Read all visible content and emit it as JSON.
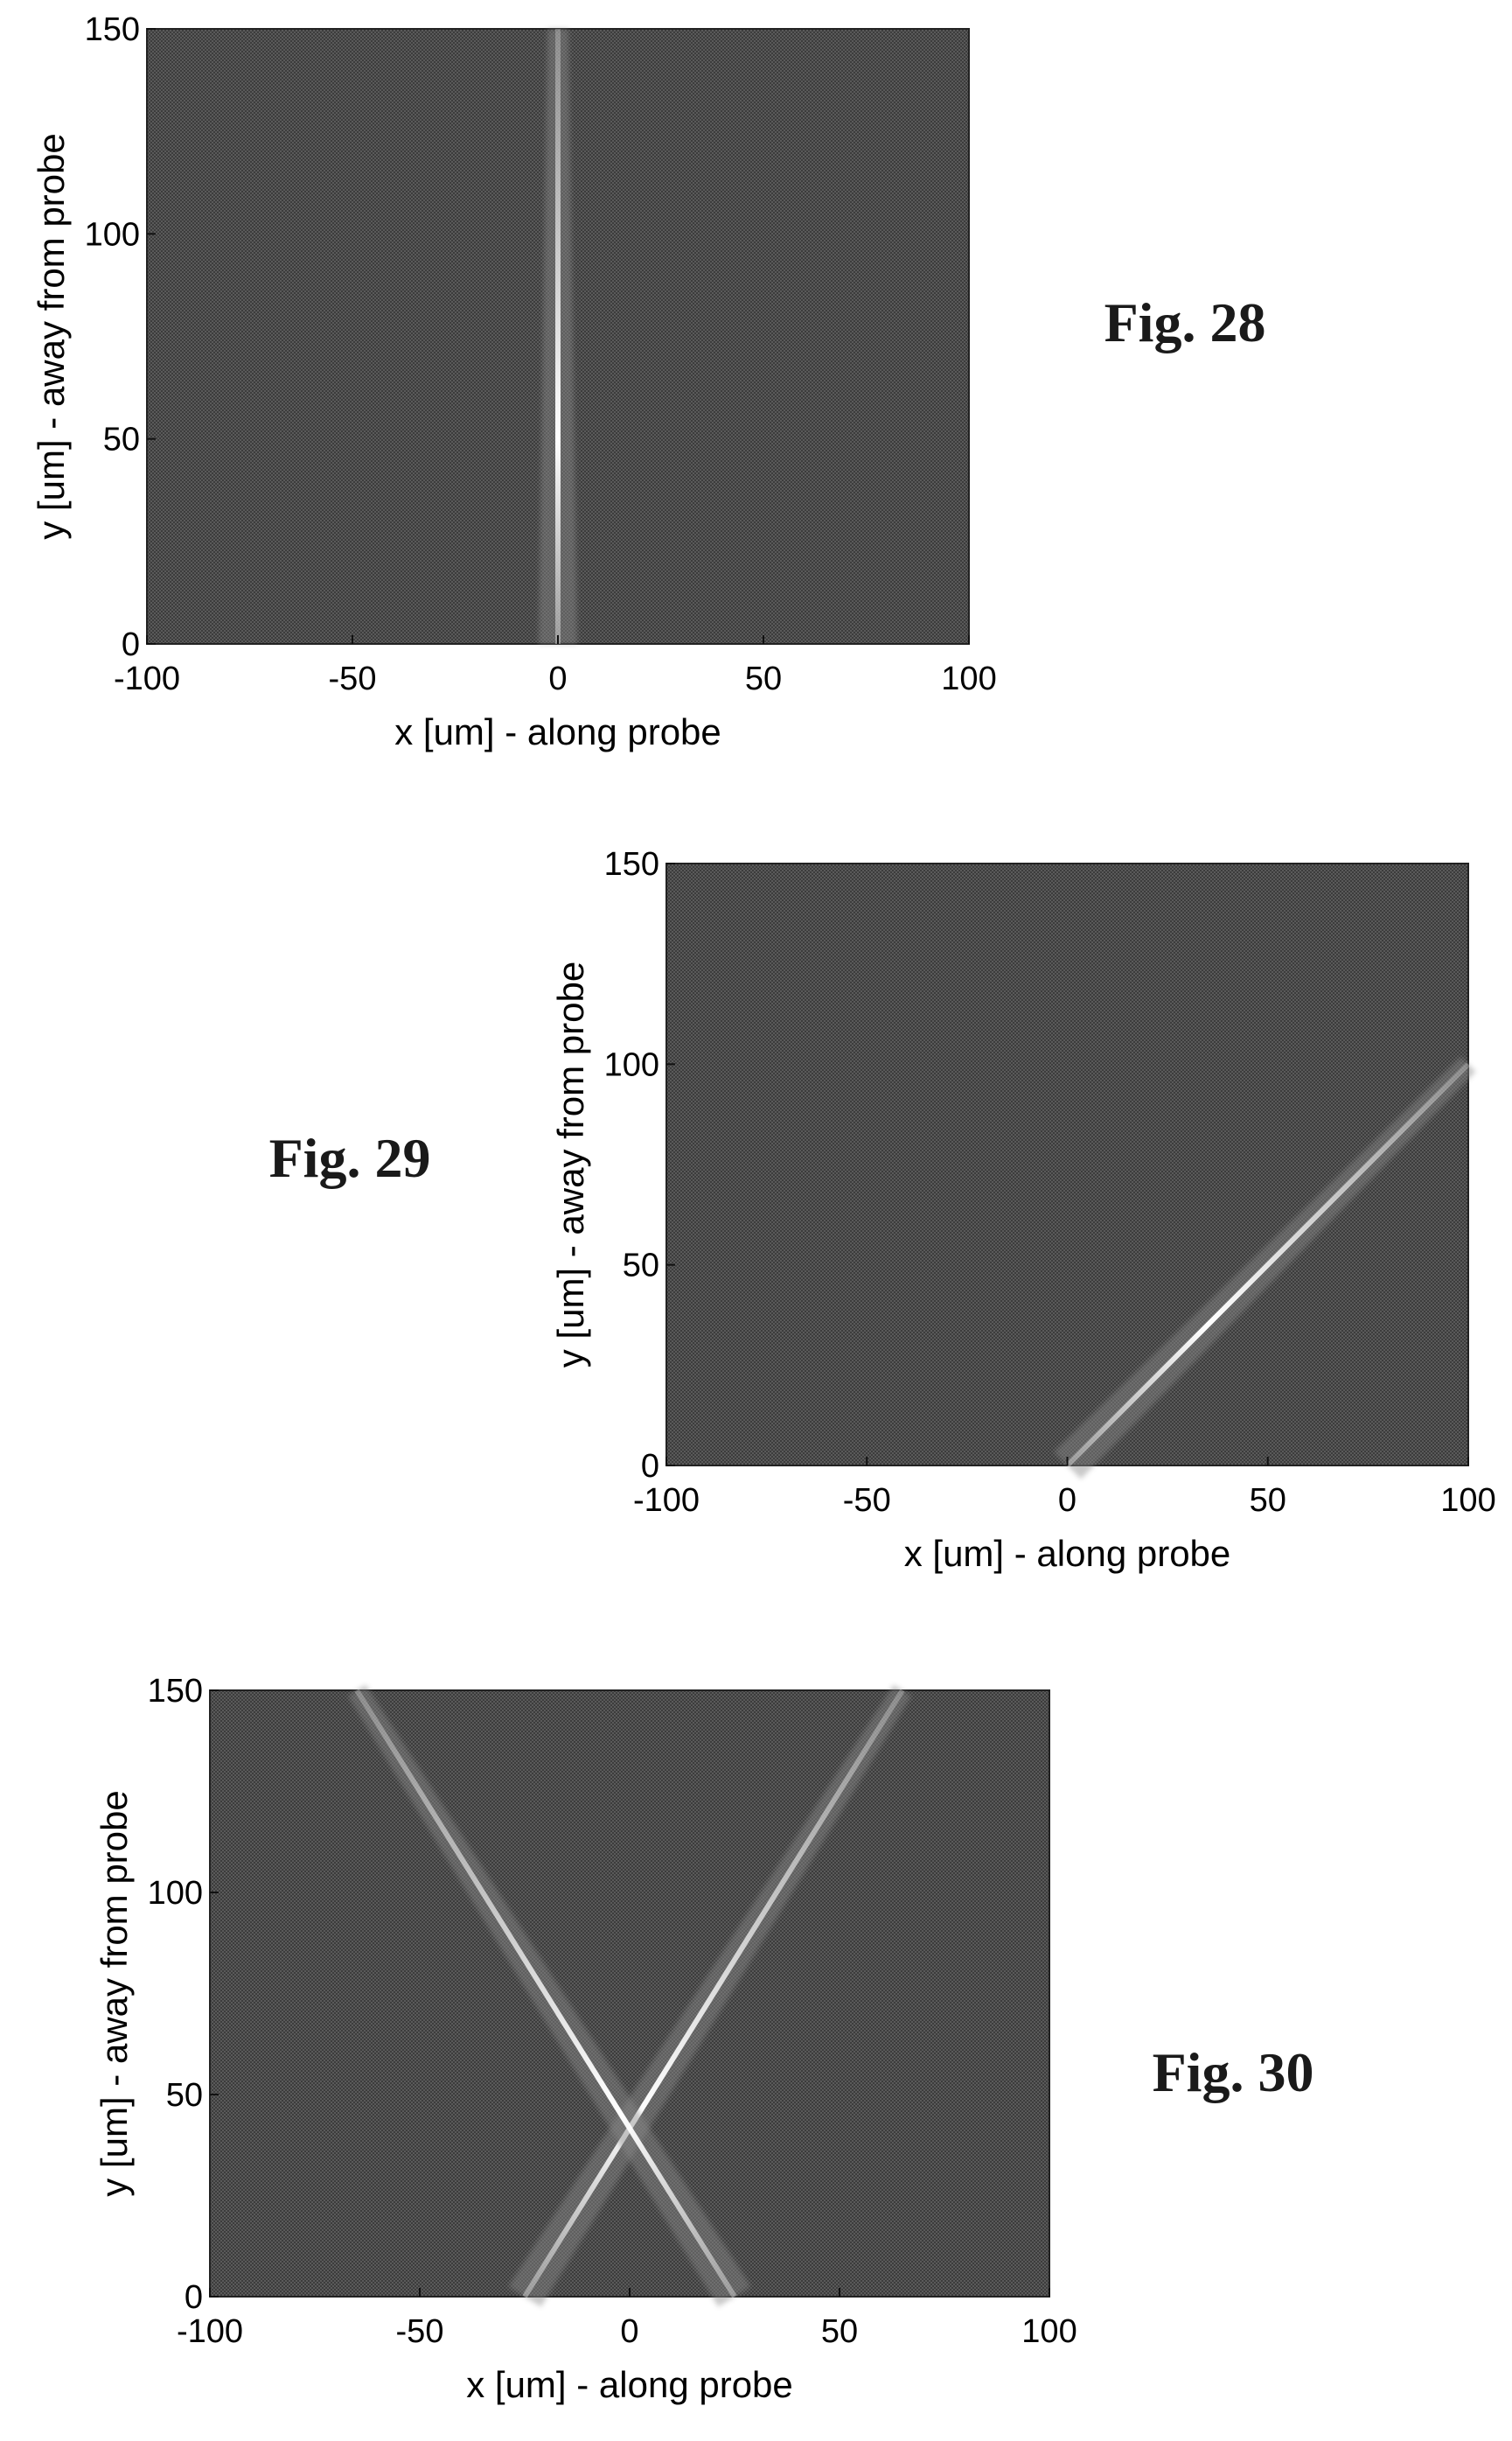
{
  "chart_data": [
    {
      "type": "heatmap",
      "figure_label": "Fig. 28",
      "xlabel": "x [um] - along probe",
      "ylabel": "y [um] - away from probe",
      "xlim": [
        -100,
        100
      ],
      "ylim": [
        0,
        150
      ],
      "xticks": [
        "-100",
        "-50",
        "0",
        "50",
        "100"
      ],
      "yticks": [
        "0",
        "50",
        "100",
        "150"
      ],
      "background_color": "#4a4a4a",
      "beams": [
        {
          "x0": 0,
          "y0": 0,
          "x1": 0,
          "y1": 150,
          "peak_y": 50
        }
      ]
    },
    {
      "type": "heatmap",
      "figure_label": "Fig. 29",
      "xlabel": "x [um] - along probe",
      "ylabel": "y [um] - away from probe",
      "xlim": [
        -100,
        100
      ],
      "ylim": [
        0,
        150
      ],
      "xticks": [
        "-100",
        "-50",
        "0",
        "50",
        "100"
      ],
      "yticks": [
        "0",
        "50",
        "100",
        "150"
      ],
      "background_color": "#4a4a4a",
      "beams": [
        {
          "x0": 0,
          "y0": 0,
          "x1": 100,
          "y1": 100,
          "peak_y": 35
        }
      ]
    },
    {
      "type": "heatmap",
      "figure_label": "Fig. 30",
      "xlabel": "x [um] - along probe",
      "ylabel": "y [um] - away from probe",
      "xlim": [
        -100,
        100
      ],
      "ylim": [
        0,
        150
      ],
      "xticks": [
        "-100",
        "-50",
        "0",
        "50",
        "100"
      ],
      "yticks": [
        "0",
        "50",
        "100",
        "150"
      ],
      "background_color": "#4a4a4a",
      "beams": [
        {
          "x0": -25,
          "y0": 0,
          "x1": 65,
          "y1": 150,
          "peak_y": 45
        },
        {
          "x0": 25,
          "y0": 0,
          "x1": -65,
          "y1": 150,
          "peak_y": 45
        }
      ]
    }
  ]
}
